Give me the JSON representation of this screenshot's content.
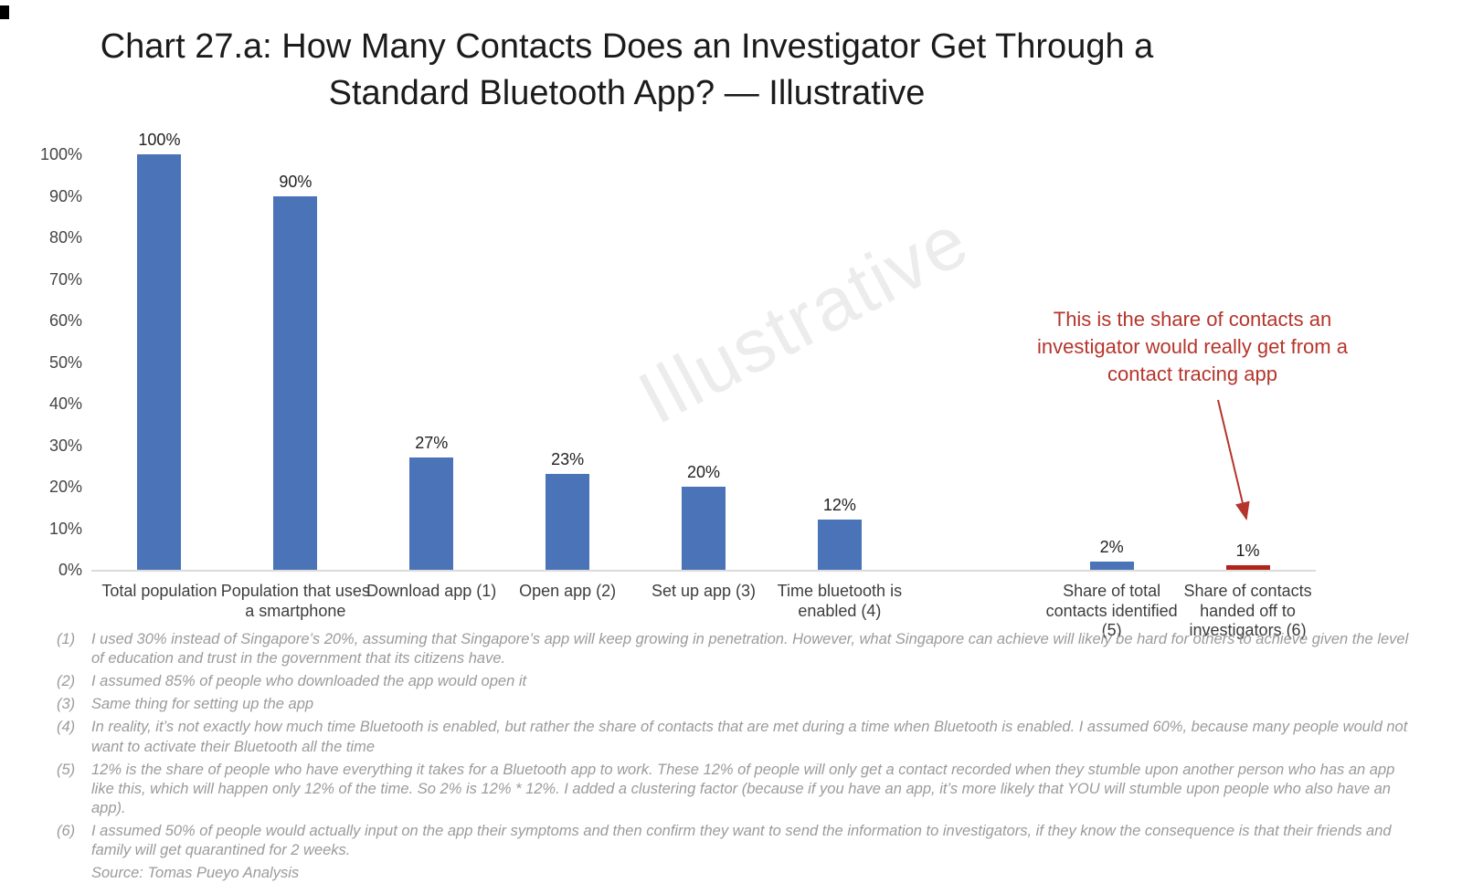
{
  "title": {
    "line1": "Chart 27.a: How Many Contacts Does an Investigator Get Through a",
    "line2": "Standard Bluetooth App? — Illustrative"
  },
  "chart_data": {
    "type": "bar",
    "title": "Chart 27.a: How Many Contacts Does an Investigator Get Through a Standard Bluetooth App? — Illustrative",
    "categories": [
      "Total population",
      "Population that uses a smartphone",
      "Download app (1)",
      "Open app (2)",
      "Set up app (3)",
      "Time bluetooth is enabled (4)",
      "Share of total contacts identified (5)",
      "Share of contacts handed off to investigators (6)"
    ],
    "values": [
      100,
      90,
      27,
      23,
      20,
      12,
      2,
      1
    ],
    "value_labels": [
      "100%",
      "90%",
      "27%",
      "23%",
      "20%",
      "12%",
      "2%",
      "1%"
    ],
    "bar_colors": [
      "#4A73B8",
      "#4A73B8",
      "#4A73B8",
      "#4A73B8",
      "#4A73B8",
      "#4A73B8",
      "#4A73B8",
      "#B2231A"
    ],
    "ylim": [
      0,
      100
    ],
    "yticks": [
      "0%",
      "10%",
      "20%",
      "30%",
      "40%",
      "50%",
      "60%",
      "70%",
      "80%",
      "90%",
      "100%"
    ],
    "grid": false,
    "legend": "none",
    "empty_slot_after_index": 5,
    "watermark": "Illustrative"
  },
  "annotation": {
    "line1": "This is the share of contacts an",
    "line2": "investigator would really get from a",
    "line3": "contact tracing app"
  },
  "footnotes": [
    {
      "marker": "(1)",
      "text": "I used 30% instead of Singapore’s 20%, assuming that Singapore’s app will keep growing in penetration. However, what Singapore can achieve will likely be hard for others to achieve given the level of education and trust in the government that its citizens have."
    },
    {
      "marker": "(2)",
      "text": "I assumed 85% of people who downloaded the app would open it"
    },
    {
      "marker": "(3)",
      "text": "Same thing for setting up the app"
    },
    {
      "marker": "(4)",
      "text": "In reality, it’s not exactly how much time Bluetooth is enabled, but rather the share of contacts that are met during a time when Bluetooth is enabled. I assumed 60%, because many people would not want to activate their Bluetooth all the time"
    },
    {
      "marker": "(5)",
      "text": "12% is the share of people who have everything it takes for a Bluetooth app to work. These 12% of people will only get a contact recorded when they stumble upon another person who has an app like this, which will happen only 12% of the time. So 2% is 12% * 12%. I added a clustering factor (because if you have an app, it’s more likely that YOU will stumble upon people who also have an app)."
    },
    {
      "marker": "(6)",
      "text": "I assumed 50% of people would actually input on the app their symptoms and then confirm they want to send the information to investigators, if they know the consequence is that their friends and family will get quarantined for 2 weeks."
    }
  ],
  "source": "Source: Tomas Pueyo Analysis",
  "colors": {
    "bar_blue": "#4A73B8",
    "bar_red": "#B2231A",
    "annotation_red": "#B5352C",
    "axis_line": "#DBDBDB",
    "title_text": "#1B1B1B",
    "tick_label": "#454545",
    "category_label": "#3D3D3D",
    "footnote_gray": "#9B9B9B",
    "watermark_gray": "#ECECEC"
  }
}
